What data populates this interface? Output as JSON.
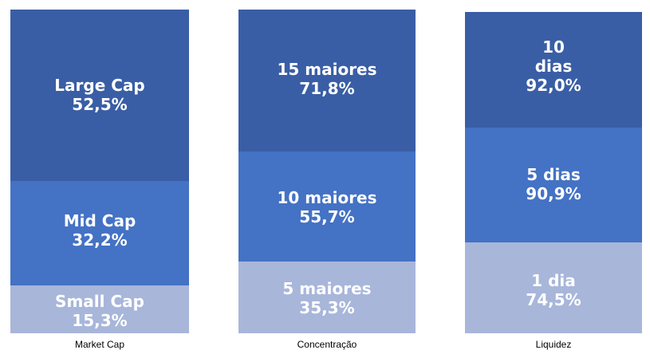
{
  "title": "",
  "colors": {
    "top": "#3a5ea5",
    "middle": "#4472c4",
    "bottom": "#a8b6da",
    "label_text": "#ffffff",
    "axis_text": "#000000"
  },
  "chart_data": {
    "type": "bar",
    "stacked": true,
    "title": "",
    "xlabel": "",
    "ylabel": "",
    "categories": [
      "Market Cap",
      "Concentração",
      "Liquidez"
    ],
    "bars": [
      {
        "category": "Market Cap",
        "segments": [
          {
            "position": "bottom",
            "lines": [
              "Small Cap",
              "15,3%"
            ],
            "value": 15.3
          },
          {
            "position": "middle",
            "lines": [
              "Mid Cap",
              "32,2%"
            ],
            "value": 32.2
          },
          {
            "position": "top",
            "lines": [
              "Large Cap",
              "52,5%"
            ],
            "value": 52.5
          }
        ]
      },
      {
        "category": "Concentração",
        "segments": [
          {
            "position": "bottom",
            "lines": [
              "5 maiores",
              "35,3%"
            ],
            "value": 35.3
          },
          {
            "position": "middle",
            "lines": [
              "10 maiores",
              "55,7%"
            ],
            "value": 55.7
          },
          {
            "position": "top",
            "lines": [
              "15 maiores",
              "71,8%"
            ],
            "value": 71.8
          }
        ]
      },
      {
        "category": "Liquidez",
        "segments": [
          {
            "position": "bottom",
            "lines": [
              "1 dia",
              "74,5%"
            ],
            "value": 74.5
          },
          {
            "position": "middle",
            "lines": [
              "5 dias",
              "90,9%"
            ],
            "value": 90.9
          },
          {
            "position": "top",
            "lines": [
              "10",
              "dias",
              "92,0%"
            ],
            "value": 92.0
          }
        ]
      }
    ]
  }
}
